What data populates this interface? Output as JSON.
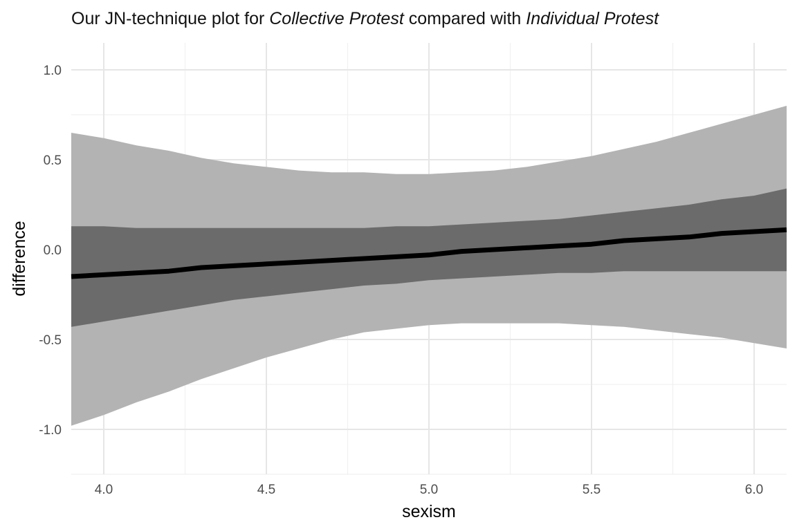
{
  "chart_data": {
    "type": "area",
    "title": {
      "prefix": "Our JN-technique plot for ",
      "emph1": "Collective Protest",
      "middle": " compared with ",
      "emph2": "Individual Protest"
    },
    "xlabel": "sexism",
    "ylabel": "difference",
    "xlim": [
      3.9,
      6.1
    ],
    "ylim": [
      -1.25,
      1.15
    ],
    "x_ticks": [
      4.0,
      4.5,
      5.0,
      5.5,
      6.0
    ],
    "x_tick_labels": [
      "4.0",
      "4.5",
      "5.0",
      "5.5",
      "6.0"
    ],
    "y_ticks": [
      1.0,
      0.5,
      0.0,
      -0.5,
      -1.0
    ],
    "y_tick_labels": [
      "1.0",
      "0.5",
      "0.0",
      "-0.5",
      "-1.0"
    ],
    "grid": true,
    "colors": {
      "outer_band": "#b3b3b3",
      "inner_band": "#6b6b6b",
      "line": "#000000"
    },
    "x": [
      3.9,
      4.0,
      4.1,
      4.2,
      4.3,
      4.4,
      4.5,
      4.6,
      4.7,
      4.8,
      4.9,
      5.0,
      5.1,
      5.2,
      5.3,
      5.4,
      5.5,
      5.6,
      5.7,
      5.8,
      5.9,
      6.0,
      6.1
    ],
    "series": [
      {
        "role": "line",
        "values": [
          -0.15,
          -0.14,
          -0.13,
          -0.12,
          -0.1,
          -0.09,
          -0.08,
          -0.07,
          -0.06,
          -0.05,
          -0.04,
          -0.03,
          -0.01,
          0.0,
          0.01,
          0.02,
          0.03,
          0.05,
          0.06,
          0.07,
          0.09,
          0.1,
          0.11
        ]
      },
      {
        "role": "inner_band",
        "lower": [
          -0.43,
          -0.4,
          -0.37,
          -0.34,
          -0.31,
          -0.28,
          -0.26,
          -0.24,
          -0.22,
          -0.2,
          -0.19,
          -0.17,
          -0.16,
          -0.15,
          -0.14,
          -0.13,
          -0.13,
          -0.12,
          -0.12,
          -0.12,
          -0.12,
          -0.12,
          -0.12
        ],
        "upper": [
          0.13,
          0.13,
          0.12,
          0.12,
          0.12,
          0.12,
          0.12,
          0.12,
          0.12,
          0.12,
          0.13,
          0.13,
          0.14,
          0.15,
          0.16,
          0.17,
          0.19,
          0.21,
          0.23,
          0.25,
          0.28,
          0.3,
          0.34
        ]
      },
      {
        "role": "outer_band",
        "lower": [
          -0.98,
          -0.92,
          -0.85,
          -0.79,
          -0.72,
          -0.66,
          -0.6,
          -0.55,
          -0.5,
          -0.46,
          -0.44,
          -0.42,
          -0.41,
          -0.41,
          -0.41,
          -0.41,
          -0.42,
          -0.43,
          -0.45,
          -0.47,
          -0.49,
          -0.52,
          -0.55
        ],
        "upper": [
          0.65,
          0.62,
          0.58,
          0.55,
          0.51,
          0.48,
          0.46,
          0.44,
          0.43,
          0.43,
          0.42,
          0.42,
          0.43,
          0.44,
          0.46,
          0.49,
          0.52,
          0.56,
          0.6,
          0.65,
          0.7,
          0.75,
          0.8
        ]
      }
    ]
  }
}
